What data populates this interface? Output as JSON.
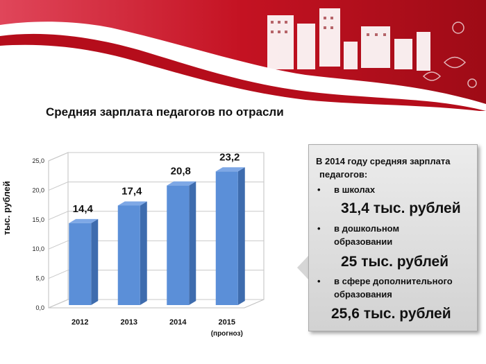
{
  "chart_data": {
    "type": "bar",
    "title": "Средняя зарплата педагогов по отрасли",
    "ylabel": "тыс. рублей",
    "categories": [
      "2012",
      "2013",
      "2014",
      "2015"
    ],
    "category_notes": [
      "",
      "",
      "",
      "(прогноз)"
    ],
    "values": [
      14.4,
      17.4,
      20.8,
      23.2
    ],
    "data_labels": [
      "14,4",
      "17,4",
      "20,8",
      "23,2"
    ],
    "yticks": [
      "0,0",
      "5,0",
      "10,0",
      "15,0",
      "20,0",
      "25,0"
    ],
    "ylim": [
      0,
      25
    ],
    "grid": true,
    "bar_color": "#5b8fd8",
    "bar_side_color": "#3e6cae"
  },
  "callout": {
    "intro_lines": [
      "В 2014 году средняя зарплата",
      "педагогов:"
    ],
    "bullet_char": "•",
    "items": [
      {
        "label_lines": [
          "в школах"
        ],
        "amount": "31,4 тыс. рублей"
      },
      {
        "label_lines": [
          "в дошкольном",
          "образовании"
        ],
        "amount": "25 тыс. рублей"
      },
      {
        "label_lines": [
          "в сфере дополнительного",
          "образования"
        ],
        "amount": "25,6 тыс. рублей"
      }
    ]
  },
  "colors": {
    "banner_red": "#c0101e",
    "banner_dark_red": "#8a0a12"
  }
}
